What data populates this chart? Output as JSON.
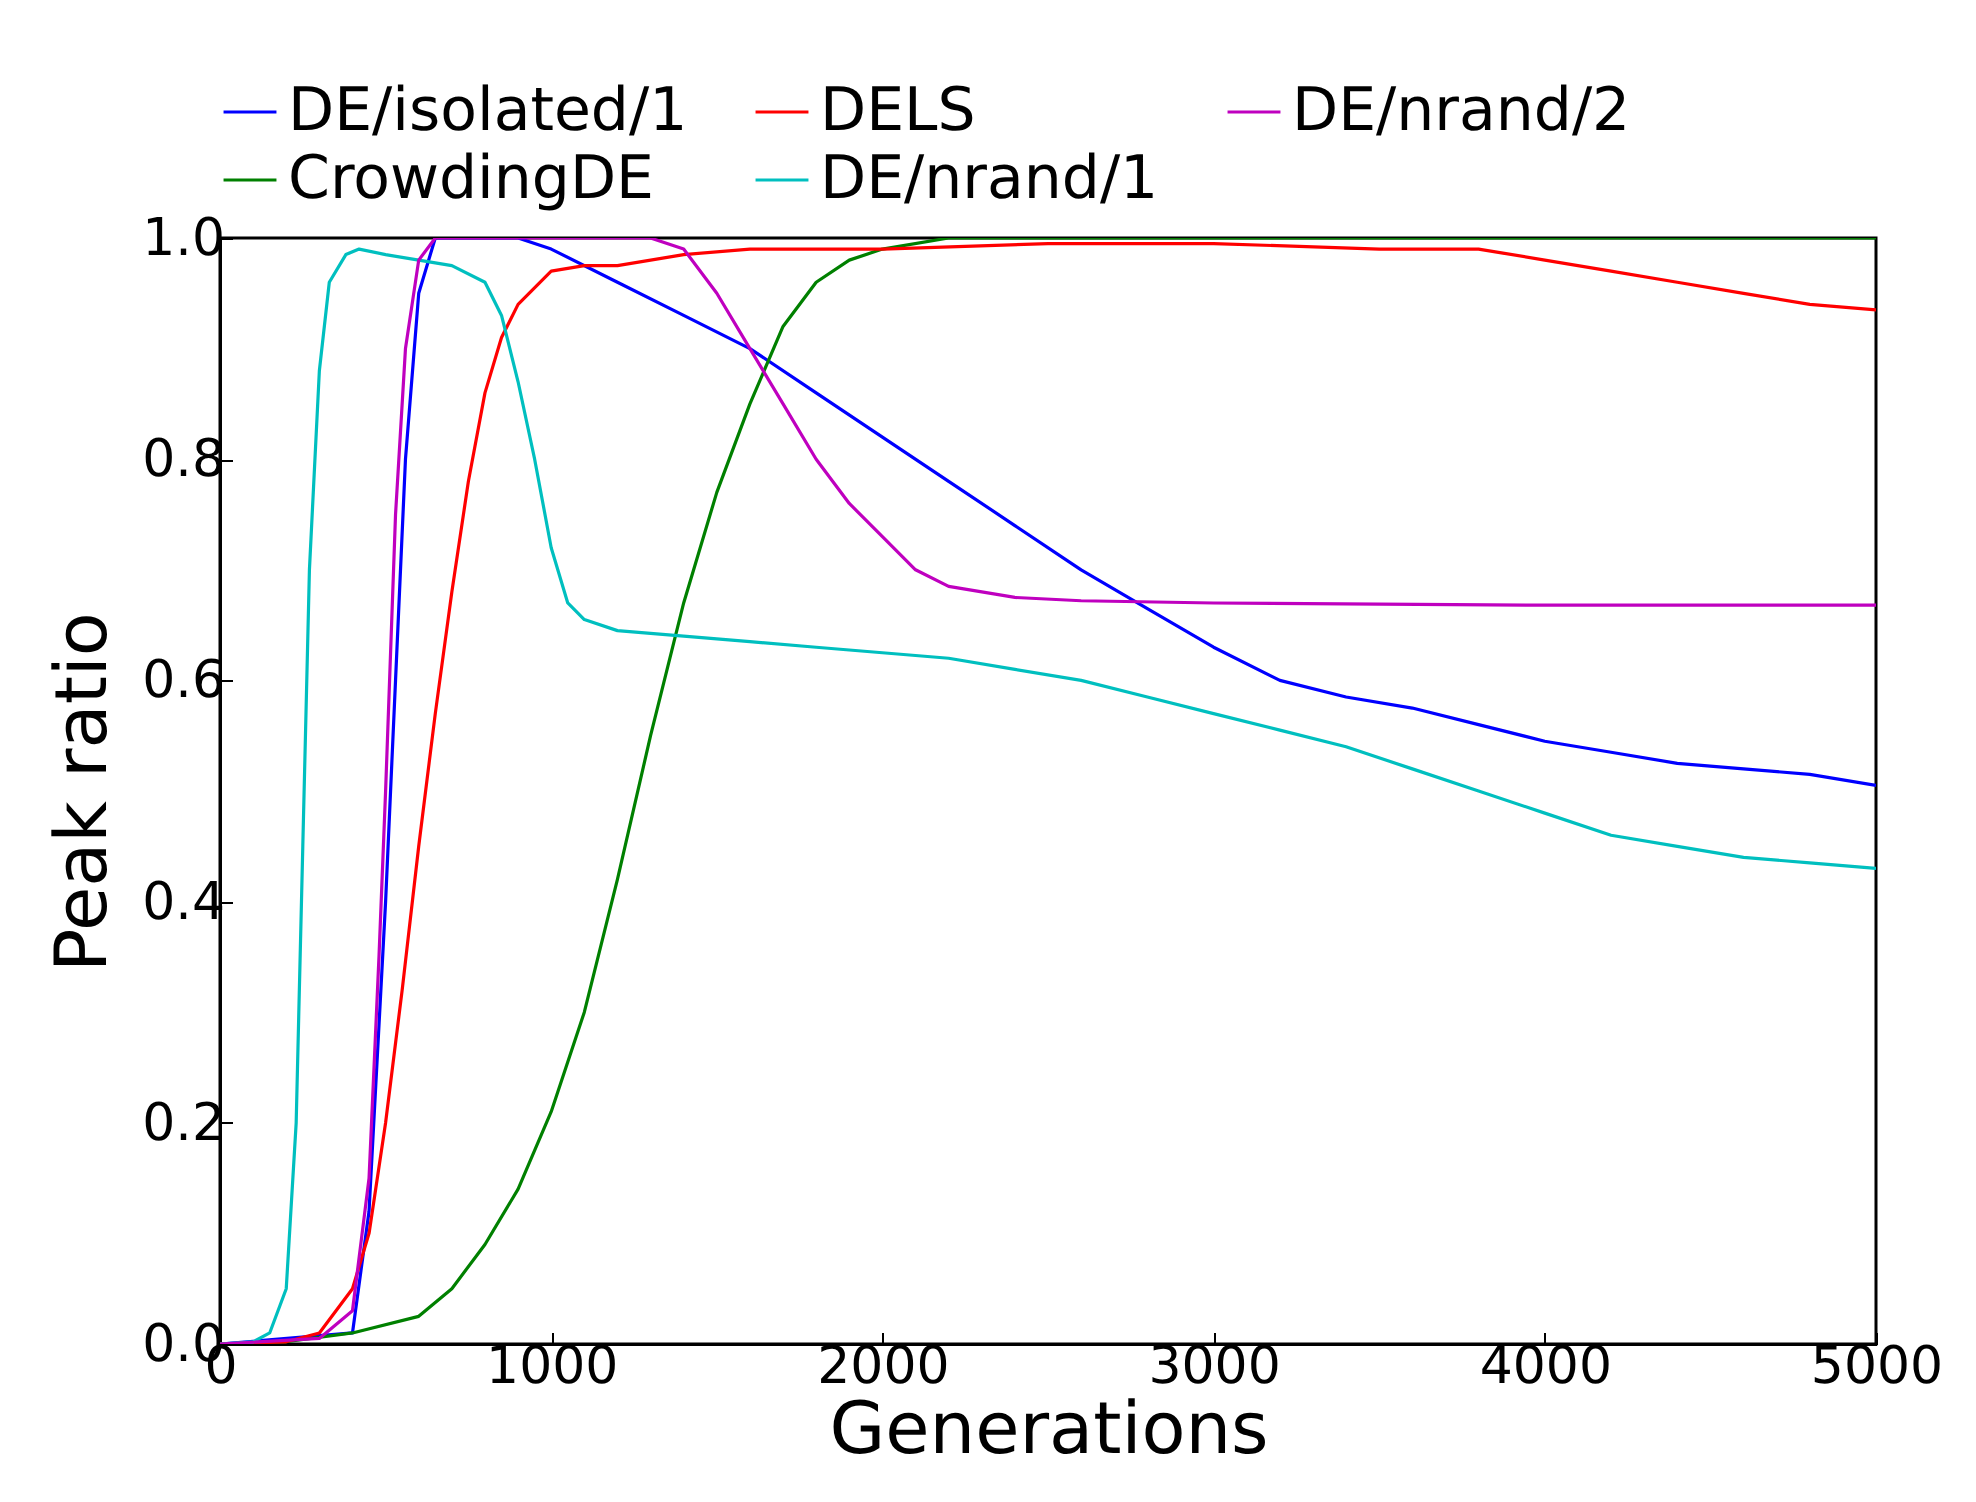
{
  "chart_data": {
    "type": "line",
    "xlabel": "Generations",
    "ylabel": "Peak ratio",
    "xlim": [
      0,
      5000
    ],
    "ylim": [
      0,
      1
    ],
    "xticks": [
      0,
      1000,
      2000,
      3000,
      4000,
      5000
    ],
    "yticks": [
      {
        "value": 0,
        "label": "0.0"
      },
      {
        "value": 0.2,
        "label": "0.2"
      },
      {
        "value": 0.4,
        "label": "0.4"
      },
      {
        "value": 0.6,
        "label": "0.6"
      },
      {
        "value": 0.8,
        "label": "0.8"
      },
      {
        "value": 1,
        "label": "1.0"
      }
    ],
    "grid": false,
    "legend": "top",
    "line_style": "solid",
    "marker": "none",
    "series": [
      {
        "name": "DE/isolated/1",
        "color": "#0000ff",
        "x": [
          0,
          400,
          450,
          500,
          530,
          560,
          600,
          650,
          900,
          1000,
          1200,
          1400,
          1600,
          1800,
          2000,
          2200,
          2400,
          2600,
          2800,
          3000,
          3200,
          3400,
          3600,
          3800,
          4000,
          4200,
          4400,
          4600,
          4800,
          5000
        ],
        "values": [
          0,
          0.01,
          0.12,
          0.4,
          0.6,
          0.8,
          0.95,
          1.0,
          1.0,
          0.99,
          0.96,
          0.93,
          0.9,
          0.86,
          0.82,
          0.78,
          0.74,
          0.7,
          0.665,
          0.63,
          0.6,
          0.585,
          0.575,
          0.56,
          0.545,
          0.535,
          0.525,
          0.52,
          0.515,
          0.505
        ]
      },
      {
        "name": "CrowdingDE",
        "color": "#008000",
        "x": [
          0,
          200,
          400,
          600,
          700,
          800,
          900,
          1000,
          1100,
          1200,
          1300,
          1400,
          1500,
          1600,
          1700,
          1800,
          1900,
          2000,
          2200,
          2500,
          3000,
          4000,
          5000
        ],
        "values": [
          0,
          0.002,
          0.01,
          0.025,
          0.05,
          0.09,
          0.14,
          0.21,
          0.3,
          0.42,
          0.55,
          0.67,
          0.77,
          0.85,
          0.92,
          0.96,
          0.98,
          0.99,
          1.0,
          1.0,
          1.0,
          1.0,
          1.0
        ]
      },
      {
        "name": "DELS",
        "color": "#ff0000",
        "x": [
          0,
          200,
          300,
          400,
          450,
          500,
          550,
          600,
          650,
          700,
          750,
          800,
          850,
          900,
          1000,
          1100,
          1200,
          1400,
          1600,
          2000,
          2500,
          3000,
          3500,
          3800,
          4000,
          4200,
          4400,
          4600,
          4800,
          5000
        ],
        "values": [
          0,
          0.002,
          0.01,
          0.05,
          0.1,
          0.2,
          0.32,
          0.45,
          0.57,
          0.68,
          0.78,
          0.86,
          0.91,
          0.94,
          0.97,
          0.975,
          0.975,
          0.985,
          0.99,
          0.99,
          0.995,
          0.995,
          0.99,
          0.99,
          0.98,
          0.97,
          0.96,
          0.95,
          0.94,
          0.935
        ]
      },
      {
        "name": "DE/nrand/1",
        "color": "#00bfbf",
        "x": [
          0,
          100,
          150,
          200,
          230,
          250,
          270,
          300,
          330,
          380,
          420,
          500,
          600,
          700,
          800,
          850,
          900,
          950,
          1000,
          1050,
          1100,
          1200,
          1400,
          1600,
          1800,
          2000,
          2200,
          2400,
          2600,
          2800,
          3000,
          3200,
          3400,
          3600,
          3800,
          4000,
          4200,
          4400,
          4600,
          4800,
          5000
        ],
        "values": [
          0,
          0.002,
          0.01,
          0.05,
          0.2,
          0.45,
          0.7,
          0.88,
          0.96,
          0.985,
          0.99,
          0.985,
          0.98,
          0.975,
          0.96,
          0.93,
          0.87,
          0.8,
          0.72,
          0.67,
          0.655,
          0.645,
          0.64,
          0.635,
          0.63,
          0.625,
          0.62,
          0.61,
          0.6,
          0.585,
          0.57,
          0.555,
          0.54,
          0.52,
          0.5,
          0.48,
          0.46,
          0.45,
          0.44,
          0.435,
          0.43
        ]
      },
      {
        "name": "DE/nrand/2",
        "color": "#bf00bf",
        "x": [
          0,
          300,
          400,
          450,
          480,
          500,
          530,
          560,
          600,
          650,
          1300,
          1400,
          1500,
          1600,
          1700,
          1800,
          1900,
          2000,
          2100,
          2200,
          2400,
          2600,
          3000,
          4000,
          5000
        ],
        "values": [
          0,
          0.005,
          0.03,
          0.15,
          0.35,
          0.5,
          0.75,
          0.9,
          0.98,
          1.0,
          1.0,
          0.99,
          0.95,
          0.9,
          0.85,
          0.8,
          0.76,
          0.73,
          0.7,
          0.685,
          0.675,
          0.672,
          0.67,
          0.668,
          0.668
        ]
      }
    ]
  }
}
